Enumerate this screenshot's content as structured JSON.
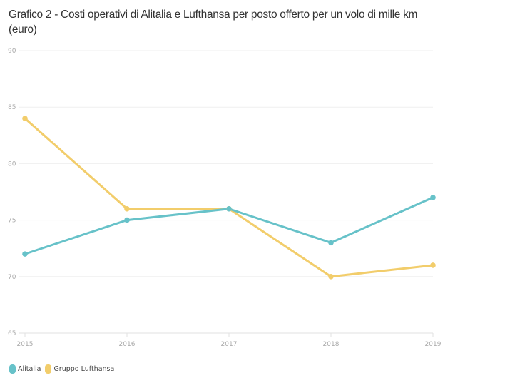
{
  "chart_data": {
    "type": "line",
    "title": "Grafico 2 - Costi operativi di Alitalia e Lufthansa per posto offerto per un volo di mille km (euro)",
    "xlabel": "",
    "ylabel": "",
    "x": [
      "2015",
      "2016",
      "2017",
      "2018",
      "2019"
    ],
    "ylim": [
      65,
      90
    ],
    "yticks": [
      65,
      70,
      75,
      80,
      85,
      90
    ],
    "grid": true,
    "legend_position": "bottom-left",
    "series": [
      {
        "name": "Alitalia",
        "color": "#67c2c9",
        "values": [
          72,
          75,
          76,
          73,
          77
        ]
      },
      {
        "name": "Gruppo Lufthansa",
        "color": "#f2cd6b",
        "values": [
          84,
          76,
          76,
          70,
          71
        ]
      }
    ]
  }
}
